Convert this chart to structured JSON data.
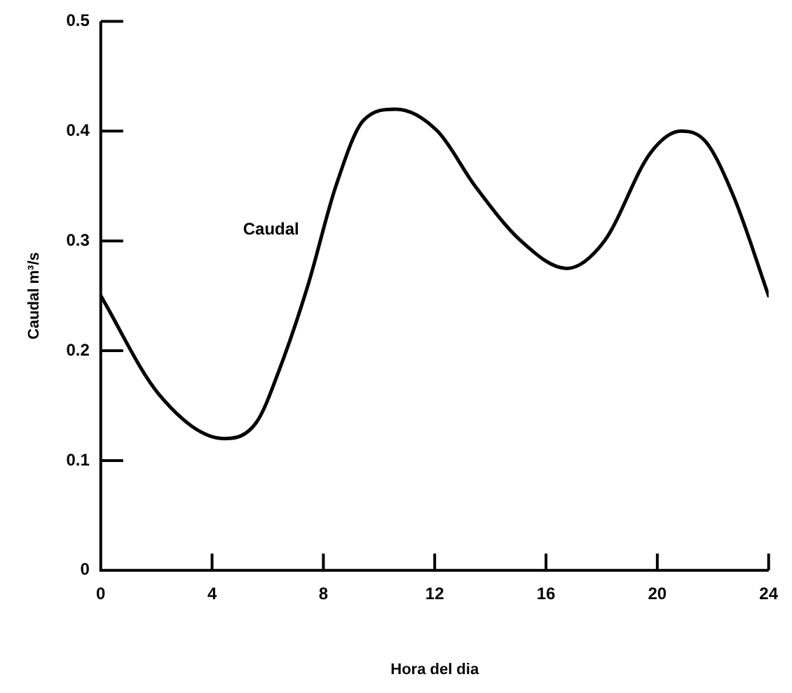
{
  "chart_data": {
    "type": "line",
    "xlabel": "Hora del dia",
    "ylabel": "Caudal m³/s",
    "x": [
      0,
      2.1,
      4.45,
      5.6,
      6.45,
      7.45,
      8.45,
      9.45,
      10.6,
      12.1,
      13.45,
      15.1,
      16.75,
      18.1,
      19.75,
      20.85,
      21.75,
      22.75,
      24
    ],
    "series": [
      {
        "color": "#000000",
        "values": [
          0.25,
          0.16,
          0.12,
          0.135,
          0.185,
          0.26,
          0.35,
          0.41,
          0.42,
          0.4,
          0.35,
          0.3,
          0.275,
          0.3,
          0.38,
          0.4,
          0.39,
          0.34,
          0.25
        ]
      }
    ],
    "xlim": [
      0,
      24
    ],
    "xticks": [
      0,
      4,
      8,
      12,
      16,
      20,
      24
    ],
    "ylim": [
      0,
      0.5
    ],
    "yticks": [
      0,
      0.1,
      0.2,
      0.3,
      0.4,
      0.5
    ],
    "annotations": [
      "Caudal"
    ],
    "grid": false,
    "legend": false,
    "marker": "none",
    "line_style": "solid"
  }
}
